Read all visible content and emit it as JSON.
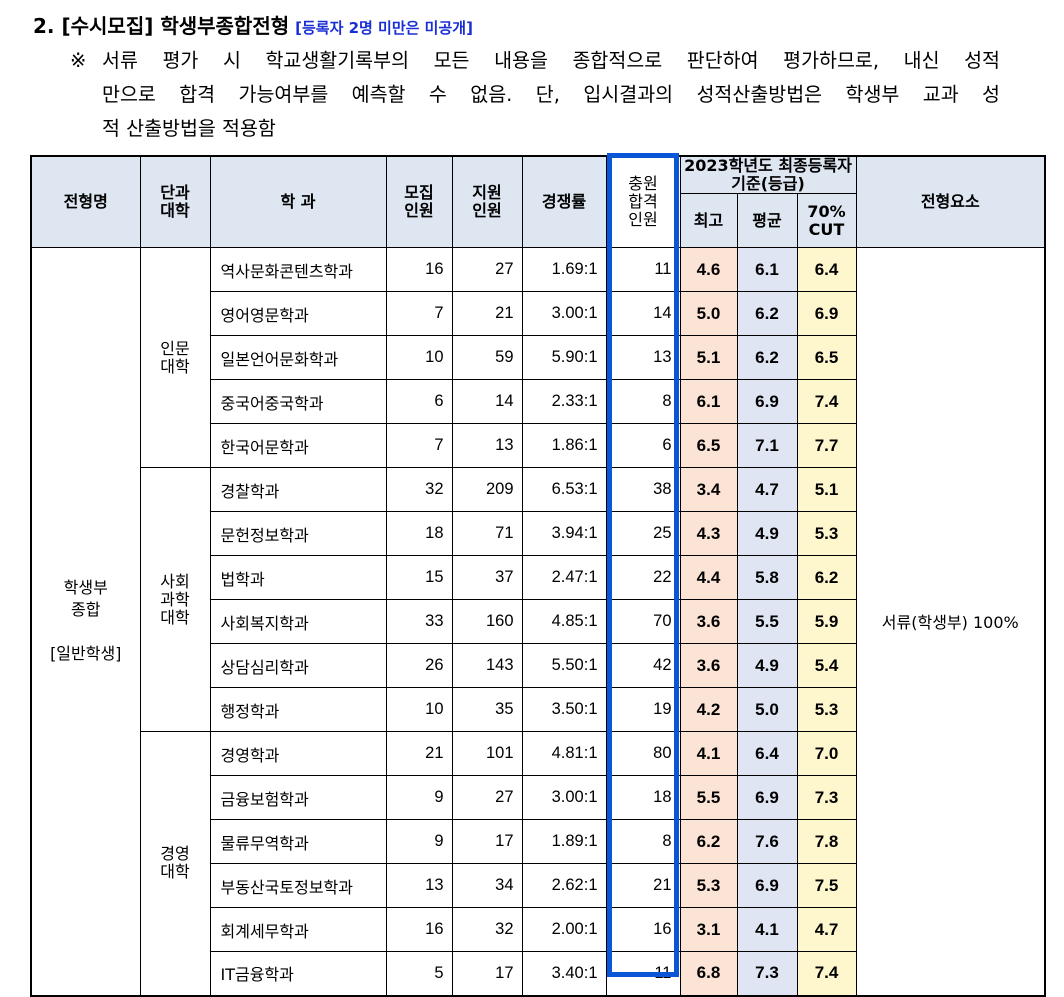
{
  "heading": {
    "title": "2. [수시모집] 학생부종합전형",
    "note": "[등록자 2명 미만은 미공개]"
  },
  "paragraph": {
    "mark": "※",
    "lines": [
      "서류 평가 시 학교생활기록부의 모든 내용을 종합적으로 판단하여 평가하므로, 내신 성적",
      "만으로 합격 가능여부를 예측할 수 없음. 단, 입시결과의 성적산출방법은 학생부 교과 성",
      "적 산출방법을 적용함"
    ]
  },
  "table": {
    "headers": {
      "track": "전형명",
      "college_l1": "단과",
      "college_l2": "대학",
      "dept": "학 과",
      "quota_l1": "모집",
      "quota_l2": "인원",
      "applicants_l1": "지원",
      "applicants_l2": "인원",
      "ratio": "경쟁률",
      "waitlist_l1": "충원",
      "waitlist_l2": "합격",
      "waitlist_l3": "인원",
      "grade_group": "2023학년도 최종등록자 기준(등급)",
      "max": "최고",
      "avg": "평균",
      "cut_l1": "70%",
      "cut_l2": "CUT",
      "element": "전형요소"
    },
    "track": {
      "line1": "학생부",
      "line2": "종합",
      "line3": "[일반학생]"
    },
    "element_value": "서류(학생부) 100%",
    "colleges": [
      {
        "l1": "인문",
        "l2": "대학",
        "l3": ""
      },
      {
        "l1": "사회",
        "l2": "과학",
        "l3": "대학"
      },
      {
        "l1": "경영",
        "l2": "대학",
        "l3": ""
      }
    ],
    "rows": [
      {
        "dept": "역사문화콘텐츠학과",
        "quota": "16",
        "applicants": "27",
        "ratio": "1.69:1",
        "waitlist": "11",
        "max": "4.6",
        "avg": "6.1",
        "cut": "6.4"
      },
      {
        "dept": "영어영문학과",
        "quota": "7",
        "applicants": "21",
        "ratio": "3.00:1",
        "waitlist": "14",
        "max": "5.0",
        "avg": "6.2",
        "cut": "6.9"
      },
      {
        "dept": "일본언어문화학과",
        "quota": "10",
        "applicants": "59",
        "ratio": "5.90:1",
        "waitlist": "13",
        "max": "5.1",
        "avg": "6.2",
        "cut": "6.5"
      },
      {
        "dept": "중국어중국학과",
        "quota": "6",
        "applicants": "14",
        "ratio": "2.33:1",
        "waitlist": "8",
        "max": "6.1",
        "avg": "6.9",
        "cut": "7.4"
      },
      {
        "dept": "한국어문학과",
        "quota": "7",
        "applicants": "13",
        "ratio": "1.86:1",
        "waitlist": "6",
        "max": "6.5",
        "avg": "7.1",
        "cut": "7.7"
      },
      {
        "dept": "경찰학과",
        "quota": "32",
        "applicants": "209",
        "ratio": "6.53:1",
        "waitlist": "38",
        "max": "3.4",
        "avg": "4.7",
        "cut": "5.1"
      },
      {
        "dept": "문헌정보학과",
        "quota": "18",
        "applicants": "71",
        "ratio": "3.94:1",
        "waitlist": "25",
        "max": "4.3",
        "avg": "4.9",
        "cut": "5.3"
      },
      {
        "dept": "법학과",
        "quota": "15",
        "applicants": "37",
        "ratio": "2.47:1",
        "waitlist": "22",
        "max": "4.4",
        "avg": "5.8",
        "cut": "6.2"
      },
      {
        "dept": "사회복지학과",
        "quota": "33",
        "applicants": "160",
        "ratio": "4.85:1",
        "waitlist": "70",
        "max": "3.6",
        "avg": "5.5",
        "cut": "5.9"
      },
      {
        "dept": "상담심리학과",
        "quota": "26",
        "applicants": "143",
        "ratio": "5.50:1",
        "waitlist": "42",
        "max": "3.6",
        "avg": "4.9",
        "cut": "5.4"
      },
      {
        "dept": "행정학과",
        "quota": "10",
        "applicants": "35",
        "ratio": "3.50:1",
        "waitlist": "19",
        "max": "4.2",
        "avg": "5.0",
        "cut": "5.3"
      },
      {
        "dept": "경영학과",
        "quota": "21",
        "applicants": "101",
        "ratio": "4.81:1",
        "waitlist": "80",
        "max": "4.1",
        "avg": "6.4",
        "cut": "7.0"
      },
      {
        "dept": "금융보험학과",
        "quota": "9",
        "applicants": "27",
        "ratio": "3.00:1",
        "waitlist": "18",
        "max": "5.5",
        "avg": "6.9",
        "cut": "7.3"
      },
      {
        "dept": "물류무역학과",
        "quota": "9",
        "applicants": "17",
        "ratio": "1.89:1",
        "waitlist": "8",
        "max": "6.2",
        "avg": "7.6",
        "cut": "7.8"
      },
      {
        "dept": "부동산국토정보학과",
        "quota": "13",
        "applicants": "34",
        "ratio": "2.62:1",
        "waitlist": "21",
        "max": "5.3",
        "avg": "6.9",
        "cut": "7.5"
      },
      {
        "dept": "회계세무학과",
        "quota": "16",
        "applicants": "32",
        "ratio": "2.00:1",
        "waitlist": "16",
        "max": "3.1",
        "avg": "4.1",
        "cut": "4.7"
      },
      {
        "dept": "IT금융학과",
        "quota": "5",
        "applicants": "17",
        "ratio": "3.40:1",
        "waitlist": "11",
        "max": "6.8",
        "avg": "7.3",
        "cut": "7.4"
      }
    ]
  },
  "colors": {
    "header_bg": "#dde6f1",
    "max_bg": "#fbe3d6",
    "avg_bg": "#dfe5f3",
    "cut_bg": "#fef6cd",
    "highlight_box": "#0b56d6",
    "note_text": "#1a2ed6"
  }
}
